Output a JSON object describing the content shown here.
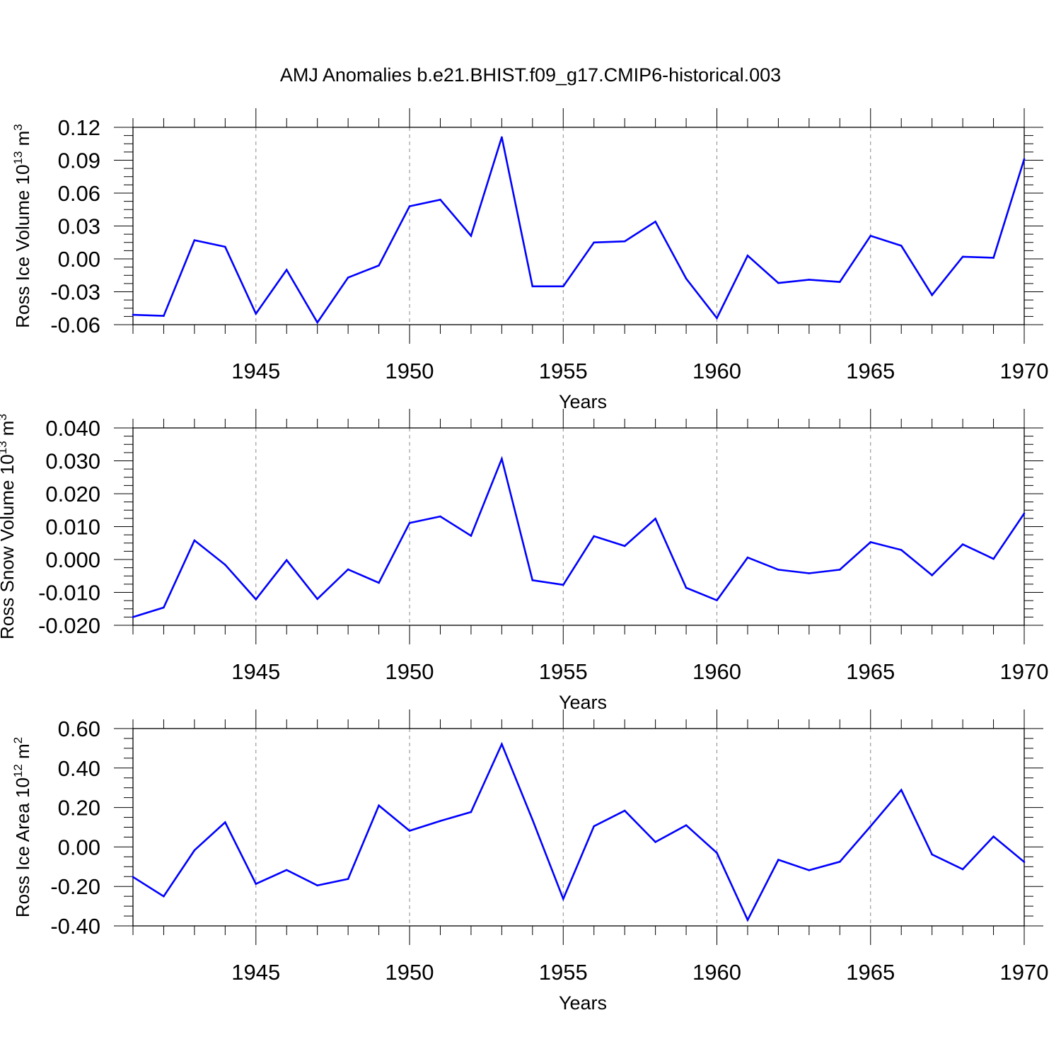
{
  "title": "AMJ Anomalies b.e21.BHIST.f09_g17.CMIP6-historical.003",
  "line_color": "#0000ff",
  "chart_data": [
    {
      "type": "line",
      "ylabel": "Ross Ice Volume 10",
      "ylabel_exp": "13",
      "ylabel_unit": " m",
      "ylabel_unit_exp": "3",
      "xlabel": "Years",
      "xlim": [
        1941,
        1970
      ],
      "ylim": [
        -0.06,
        0.12
      ],
      "yticks": [
        -0.06,
        -0.03,
        0.0,
        0.03,
        0.06,
        0.09,
        0.12
      ],
      "ytick_labels": [
        "-0.06",
        "-0.03",
        "0.00",
        "0.03",
        "0.06",
        "0.09",
        "0.12"
      ],
      "xticks": [
        1945,
        1950,
        1955,
        1960,
        1965,
        1970
      ],
      "xtick_labels": [
        "1945",
        "1950",
        "1955",
        "1960",
        "1965",
        "1970"
      ],
      "grid": "vertical dashed at major x ticks",
      "x": [
        1941,
        1942,
        1943,
        1944,
        1945,
        1946,
        1947,
        1948,
        1949,
        1950,
        1951,
        1952,
        1953,
        1954,
        1955,
        1956,
        1957,
        1958,
        1959,
        1960,
        1961,
        1962,
        1963,
        1964,
        1965,
        1966,
        1967,
        1968,
        1969,
        1970
      ],
      "values": [
        -0.051,
        -0.052,
        0.017,
        0.011,
        -0.05,
        -0.01,
        -0.058,
        -0.017,
        -0.006,
        0.048,
        0.054,
        0.021,
        0.111,
        -0.025,
        -0.025,
        0.015,
        0.016,
        0.034,
        -0.018,
        -0.054,
        0.003,
        -0.022,
        -0.019,
        -0.021,
        0.021,
        0.012,
        -0.033,
        0.002,
        0.001,
        0.091
      ]
    },
    {
      "type": "line",
      "ylabel": "Ross Snow Volume 10",
      "ylabel_exp": "13",
      "ylabel_unit": " m",
      "ylabel_unit_exp": "3",
      "xlabel": "Years",
      "xlim": [
        1941,
        1970
      ],
      "ylim": [
        -0.02,
        0.04
      ],
      "yticks": [
        -0.02,
        -0.01,
        0.0,
        0.01,
        0.02,
        0.03,
        0.04
      ],
      "ytick_labels": [
        "-0.020",
        "-0.010",
        "0.000",
        "0.010",
        "0.020",
        "0.030",
        "0.040"
      ],
      "xticks": [
        1945,
        1950,
        1955,
        1960,
        1965,
        1970
      ],
      "xtick_labels": [
        "1945",
        "1950",
        "1955",
        "1960",
        "1965",
        "1970"
      ],
      "grid": "vertical dashed at major x ticks",
      "x": [
        1941,
        1942,
        1943,
        1944,
        1945,
        1946,
        1947,
        1948,
        1949,
        1950,
        1951,
        1952,
        1953,
        1954,
        1955,
        1956,
        1957,
        1958,
        1959,
        1960,
        1961,
        1962,
        1963,
        1964,
        1965,
        1966,
        1967,
        1968,
        1969,
        1970
      ],
      "values": [
        -0.0175,
        -0.0146,
        0.0058,
        -0.0016,
        -0.0121,
        -0.0002,
        -0.012,
        -0.003,
        -0.0071,
        0.0111,
        0.0131,
        0.0072,
        0.0306,
        -0.0063,
        -0.0077,
        0.0071,
        0.0041,
        0.0124,
        -0.0086,
        -0.0124,
        0.0006,
        -0.0031,
        -0.0042,
        -0.0031,
        0.0053,
        0.0029,
        -0.0048,
        0.0046,
        0.0002,
        0.014
      ]
    },
    {
      "type": "line",
      "ylabel": "Ross Ice Area 10",
      "ylabel_exp": "12",
      "ylabel_unit": " m",
      "ylabel_unit_exp": "2",
      "xlabel": "Years",
      "xlim": [
        1941,
        1970
      ],
      "ylim": [
        -0.4,
        0.6
      ],
      "yticks": [
        -0.4,
        -0.2,
        0.0,
        0.2,
        0.4,
        0.6
      ],
      "ytick_labels": [
        "-0.40",
        "-0.20",
        "0.00",
        "0.20",
        "0.40",
        "0.60"
      ],
      "xticks": [
        1945,
        1950,
        1955,
        1960,
        1965,
        1970
      ],
      "xtick_labels": [
        "1945",
        "1950",
        "1955",
        "1960",
        "1965",
        "1970"
      ],
      "grid": "vertical dashed at major x ticks",
      "x": [
        1941,
        1942,
        1943,
        1944,
        1945,
        1946,
        1947,
        1948,
        1949,
        1950,
        1951,
        1952,
        1953,
        1954,
        1955,
        1956,
        1957,
        1958,
        1959,
        1960,
        1961,
        1962,
        1963,
        1964,
        1965,
        1966,
        1967,
        1968,
        1969,
        1970
      ],
      "values": [
        -0.152,
        -0.25,
        -0.017,
        0.125,
        -0.187,
        -0.117,
        -0.195,
        -0.162,
        0.21,
        0.082,
        0.132,
        0.177,
        0.521,
        0.138,
        -0.263,
        0.105,
        0.184,
        0.025,
        0.11,
        -0.03,
        -0.37,
        -0.065,
        -0.118,
        -0.075,
        0.105,
        0.289,
        -0.038,
        -0.113,
        0.053,
        -0.076
      ]
    }
  ]
}
